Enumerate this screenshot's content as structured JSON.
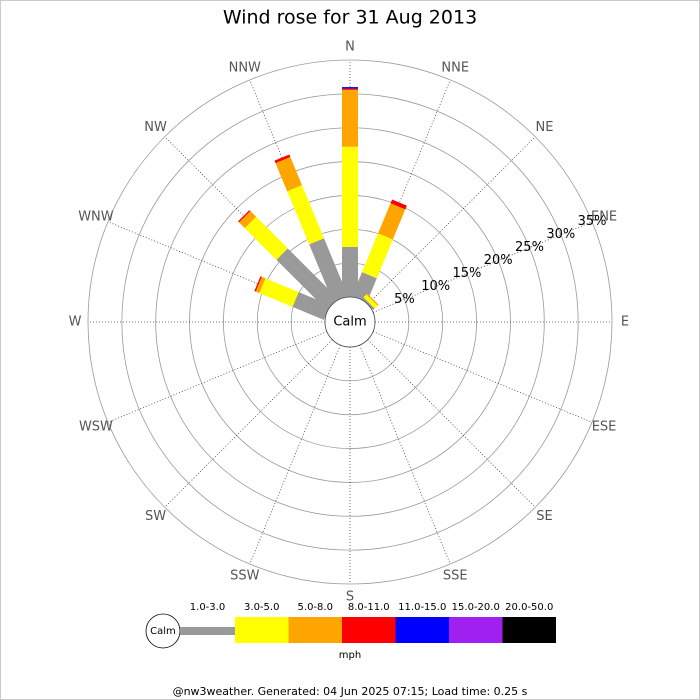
{
  "chart_data": {
    "type": "wind_rose",
    "title": "Wind rose for 31 Aug 2013",
    "categories": [
      "N",
      "NNE",
      "NE",
      "ENE",
      "E",
      "ESE",
      "SE",
      "SSE",
      "S",
      "SSW",
      "SW",
      "WSW",
      "W",
      "WNW",
      "NW",
      "NNW"
    ],
    "series": [
      {
        "name": "1.0-3.0",
        "color": "#999999",
        "values": [
          7.4,
          3.8,
          0.3,
          0,
          0,
          0,
          0,
          0,
          0,
          0,
          0,
          0,
          0,
          5.0,
          10.5,
          9.2
        ]
      },
      {
        "name": "3.0-5.0",
        "color": "#ffff00",
        "values": [
          14.8,
          6.2,
          0.6,
          0,
          0,
          0,
          0,
          0,
          0,
          0,
          0,
          0,
          0,
          5.3,
          6.6,
          8.5
        ]
      },
      {
        "name": "5.0-8.0",
        "color": "#ffa500",
        "values": [
          8.4,
          4.8,
          0.2,
          0,
          0,
          0,
          0,
          0,
          0,
          0,
          0,
          0,
          0,
          0.6,
          1.2,
          4.5
        ]
      },
      {
        "name": "8.0-11.0",
        "color": "#ff0000",
        "values": [
          0.2,
          0.6,
          0,
          0,
          0,
          0,
          0,
          0,
          0,
          0,
          0,
          0,
          0,
          0.2,
          0.2,
          0.4
        ]
      },
      {
        "name": "11.0-15.0",
        "color": "#0000ff",
        "values": [
          0.2,
          0,
          0,
          0,
          0,
          0,
          0,
          0,
          0,
          0,
          0,
          0,
          0,
          0,
          0,
          0
        ]
      },
      {
        "name": "15.0-20.0",
        "color": "#a020f0",
        "values": [
          0,
          0,
          0,
          0,
          0,
          0,
          0,
          0,
          0,
          0,
          0,
          0,
          0,
          0,
          0,
          0
        ]
      },
      {
        "name": "20.0-50.0",
        "color": "#000000",
        "values": [
          0,
          0,
          0,
          0,
          0,
          0,
          0,
          0,
          0,
          0,
          0,
          0,
          0,
          0,
          0,
          0
        ]
      }
    ],
    "rlim": [
      0,
      35
    ],
    "rticks": [
      {
        "value": 5,
        "label": "5%"
      },
      {
        "value": 10,
        "label": "10%"
      },
      {
        "value": 15,
        "label": "15%"
      },
      {
        "value": 20,
        "label": "20%"
      },
      {
        "value": 25,
        "label": "25%"
      },
      {
        "value": 30,
        "label": "30%"
      },
      {
        "value": 35,
        "label": "35%"
      }
    ],
    "calm_label": "Calm",
    "legend_unit": "mph"
  },
  "footer": "@nw3weather. Generated: 04 Jun 2025 07:15; Load time: 0.25 s"
}
